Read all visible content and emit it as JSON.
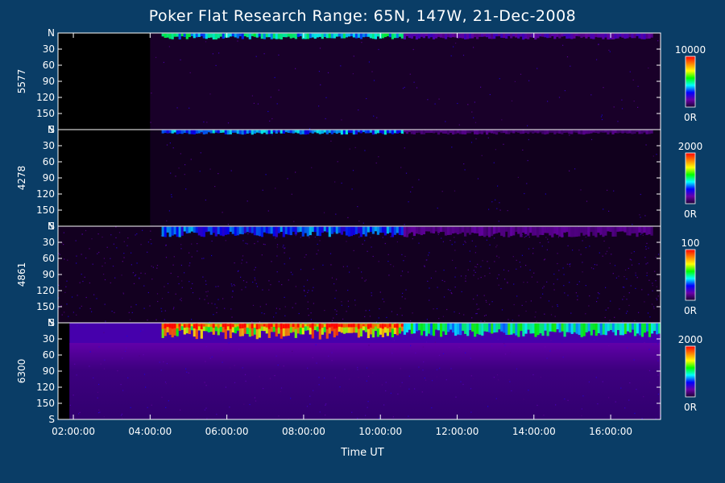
{
  "chart_data": {
    "type": "heatmap",
    "title": "Poker Flat Research Range: 65N, 147W, 21-Dec-2008",
    "xlabel": "Time UT",
    "x_ticks": [
      "02:00:00",
      "04:00:00",
      "06:00:00",
      "08:00:00",
      "10:00:00",
      "12:00:00",
      "14:00:00",
      "16:00:00"
    ],
    "x_tick_hours": [
      2,
      4,
      6,
      8,
      10,
      12,
      14,
      16
    ],
    "x_range_hours": [
      1.6,
      17.3
    ],
    "y_ticks": [
      "N",
      "30",
      "60",
      "90",
      "120",
      "150",
      "S"
    ],
    "y_tick_values": [
      0,
      30,
      60,
      90,
      120,
      150,
      180
    ],
    "y_range": [
      0,
      180
    ],
    "colors": {
      "background": "#0a3d66",
      "dark_fill": "#000000",
      "colorbar": [
        "#1a0033",
        "#6a00a8",
        "#0000ff",
        "#00ffff",
        "#00ff00",
        "#ffff00",
        "#ff8000",
        "#ff0000"
      ]
    },
    "panels": [
      {
        "name": "5577",
        "scale_max": "10000",
        "scale_min": "0R",
        "data_start_hour": 4.0,
        "base_level": 0.08,
        "arc_hours": [
          [
            4.3,
            10.6
          ],
          [
            10.6,
            17.1
          ]
        ],
        "arc_intensity": [
          0.55,
          0.2
        ],
        "arc_elevation": 8
      },
      {
        "name": "4278",
        "scale_max": "2000",
        "scale_min": "0R",
        "data_start_hour": 4.0,
        "base_level": 0.04,
        "arc_hours": [
          [
            4.3,
            10.6
          ],
          [
            10.6,
            17.1
          ]
        ],
        "arc_intensity": [
          0.45,
          0.12
        ],
        "arc_elevation": 6
      },
      {
        "name": "4861",
        "scale_max": "100",
        "scale_min": "0R",
        "data_start_hour": 1.6,
        "base_level": 0.05,
        "arc_hours": [
          [
            4.3,
            10.6
          ],
          [
            10.6,
            17.1
          ]
        ],
        "arc_intensity": [
          0.4,
          0.15
        ],
        "arc_elevation": 14
      },
      {
        "name": "6300",
        "scale_max": "2000",
        "scale_min": "0R",
        "data_start_hour": 1.9,
        "base_level": 0.18,
        "arc_hours": [
          [
            4.3,
            10.6
          ],
          [
            10.6,
            17.3
          ]
        ],
        "arc_intensity": [
          0.95,
          0.6
        ],
        "arc_elevation": 12
      }
    ]
  }
}
